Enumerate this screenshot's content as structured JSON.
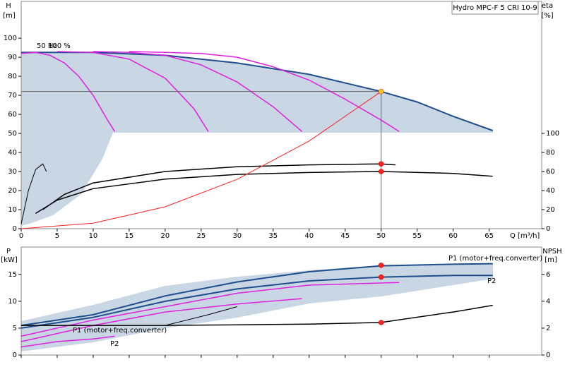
{
  "chart_data": [
    {
      "type": "line",
      "title": "Hydro MPC-F 5 CRI 10-9",
      "y_label": "H",
      "y_unit": "[m]",
      "y2_label": "eta",
      "y2_unit": "[%]",
      "x_label": "Q [m³/h]",
      "xlim": [
        0,
        72.3
      ],
      "xticks": [
        0,
        5,
        10,
        15,
        20,
        25,
        30,
        35,
        40,
        45,
        50,
        55,
        60,
        65
      ],
      "ylim": [
        0,
        119.3
      ],
      "yticks": [
        0,
        10,
        20,
        30,
        40,
        50,
        60,
        70,
        80,
        90,
        100
      ],
      "y2lim": [
        0,
        238.6
      ],
      "y2ticks": [
        0,
        20,
        40,
        60,
        80,
        100
      ],
      "annotations": [
        {
          "text": "50 Hz"
        },
        {
          "text": "100 %"
        }
      ],
      "series": [
        {
          "color": "#1f4e8c",
          "width": 2,
          "x": [
            0,
            10,
            20,
            30,
            40,
            50,
            55,
            60,
            65.5
          ],
          "values": [
            92.5,
            92.5,
            91,
            87,
            81,
            72,
            66.5,
            59,
            51.5
          ]
        },
        {
          "color": "#e020e0",
          "width": 1.5,
          "x": [
            0,
            2,
            4,
            6,
            8,
            10,
            12,
            13
          ],
          "values": [
            92,
            92.5,
            91,
            87,
            80,
            70,
            57,
            51
          ]
        },
        {
          "color": "#e020e0",
          "width": 1.5,
          "x": [
            5,
            10,
            15,
            20,
            24,
            26
          ],
          "values": [
            93,
            92.5,
            89,
            79,
            63,
            51
          ]
        },
        {
          "color": "#e020e0",
          "width": 1.5,
          "x": [
            10,
            15,
            20,
            25,
            30,
            35,
            39
          ],
          "values": [
            93,
            92.5,
            91,
            86,
            77,
            64,
            51
          ]
        },
        {
          "color": "#e020e0",
          "width": 1.5,
          "x": [
            15,
            20,
            25,
            30,
            35,
            40,
            45,
            50,
            52.5
          ],
          "values": [
            93,
            92.5,
            92,
            90,
            85,
            78,
            68,
            57,
            51
          ]
        },
        {
          "color": "#000000",
          "width": 1.5,
          "axis": "y2",
          "x": [
            2,
            5,
            10,
            20,
            30,
            40,
            50,
            60,
            65.5
          ],
          "values": [
            16,
            30,
            42,
            52,
            57,
            59,
            60,
            58,
            55
          ]
        },
        {
          "color": "#000000",
          "width": 1.5,
          "axis": "y2",
          "x": [
            3,
            6,
            10,
            20,
            30,
            40,
            50,
            52
          ],
          "values": [
            20,
            36,
            48,
            60,
            65,
            67,
            68,
            67
          ]
        },
        {
          "color": "#000000",
          "width": 1,
          "axis": "y2",
          "x": [
            0,
            1,
            2,
            3,
            3.5
          ],
          "values": [
            5,
            40,
            62,
            68,
            60
          ]
        },
        {
          "color": "#ff2020",
          "width": 1,
          "x": [
            0,
            10,
            20,
            30,
            40,
            50
          ],
          "values": [
            0,
            2.9,
            11.5,
            25.9,
            46,
            72
          ]
        },
        {
          "color": "#ffd020",
          "marker": true,
          "guides": true,
          "x": [
            50
          ],
          "values": [
            72
          ]
        },
        {
          "color": "#ff2020",
          "marker": true,
          "axis": "y2",
          "x": [
            50
          ],
          "values": [
            68
          ]
        },
        {
          "color": "#ff2020",
          "marker": true,
          "axis": "y2",
          "x": [
            50
          ],
          "values": [
            60
          ]
        }
      ]
    },
    {
      "type": "line",
      "y_label": "P",
      "y_unit": "[kW]",
      "y2_label": "NPSH",
      "y2_unit": "[m]",
      "xlim": [
        0,
        72.3
      ],
      "ylim": [
        0,
        20.1
      ],
      "yticks": [
        0,
        5,
        10,
        15
      ],
      "y2lim": [
        0,
        8.04
      ],
      "y2ticks": [
        0,
        2,
        4,
        6
      ],
      "annotations": [
        {
          "text": "P1 (motor+freq.converter)"
        },
        {
          "text": "P2"
        },
        {
          "text": "P1 (motor+freq.converter)"
        },
        {
          "text": "P2"
        }
      ],
      "series": [
        {
          "color": "#1f4e8c",
          "width": 2,
          "x": [
            0,
            10,
            20,
            30,
            40,
            50,
            60,
            65.5
          ],
          "values": [
            5.5,
            7.5,
            11,
            13.6,
            15.5,
            16.6,
            16.9,
            17
          ]
        },
        {
          "color": "#1f4e8c",
          "width": 2,
          "x": [
            0,
            10,
            20,
            30,
            40,
            50,
            60,
            65.5
          ],
          "values": [
            5,
            7,
            10,
            12.3,
            13.8,
            14.5,
            14.8,
            14.8
          ]
        },
        {
          "color": "#e020e0",
          "width": 1.5,
          "x": [
            0,
            10,
            20,
            30,
            40,
            52.5
          ],
          "values": [
            3.5,
            6.5,
            9,
            11.5,
            13,
            13.5
          ]
        },
        {
          "color": "#e020e0",
          "width": 1.5,
          "x": [
            0,
            10,
            20,
            30,
            39
          ],
          "values": [
            2.5,
            5.5,
            8,
            9.5,
            10.5
          ]
        },
        {
          "color": "#e020e0",
          "width": 1.5,
          "x": [
            0,
            5,
            10,
            13
          ],
          "values": [
            1.5,
            2.5,
            3,
            3.5
          ]
        },
        {
          "color": "#000000",
          "width": 1.5,
          "axis": "y2",
          "x": [
            0,
            10,
            20,
            30,
            40,
            50,
            60,
            65.5
          ],
          "values": [
            2.2,
            2.2,
            2.2,
            2.25,
            2.3,
            2.42,
            3.2,
            3.7
          ]
        },
        {
          "color": "#000000",
          "width": 1,
          "axis": "y2",
          "x": [
            20,
            26,
            30
          ],
          "values": [
            2.2,
            3,
            3.6
          ]
        },
        {
          "color": "#ff2020",
          "marker": true,
          "x": [
            50
          ],
          "values": [
            16.7
          ]
        },
        {
          "color": "#ff2020",
          "marker": true,
          "x": [
            50
          ],
          "values": [
            14.5
          ]
        },
        {
          "color": "#ff2020",
          "marker": true,
          "axis": "y2",
          "x": [
            50
          ],
          "values": [
            2.42
          ]
        }
      ]
    }
  ]
}
